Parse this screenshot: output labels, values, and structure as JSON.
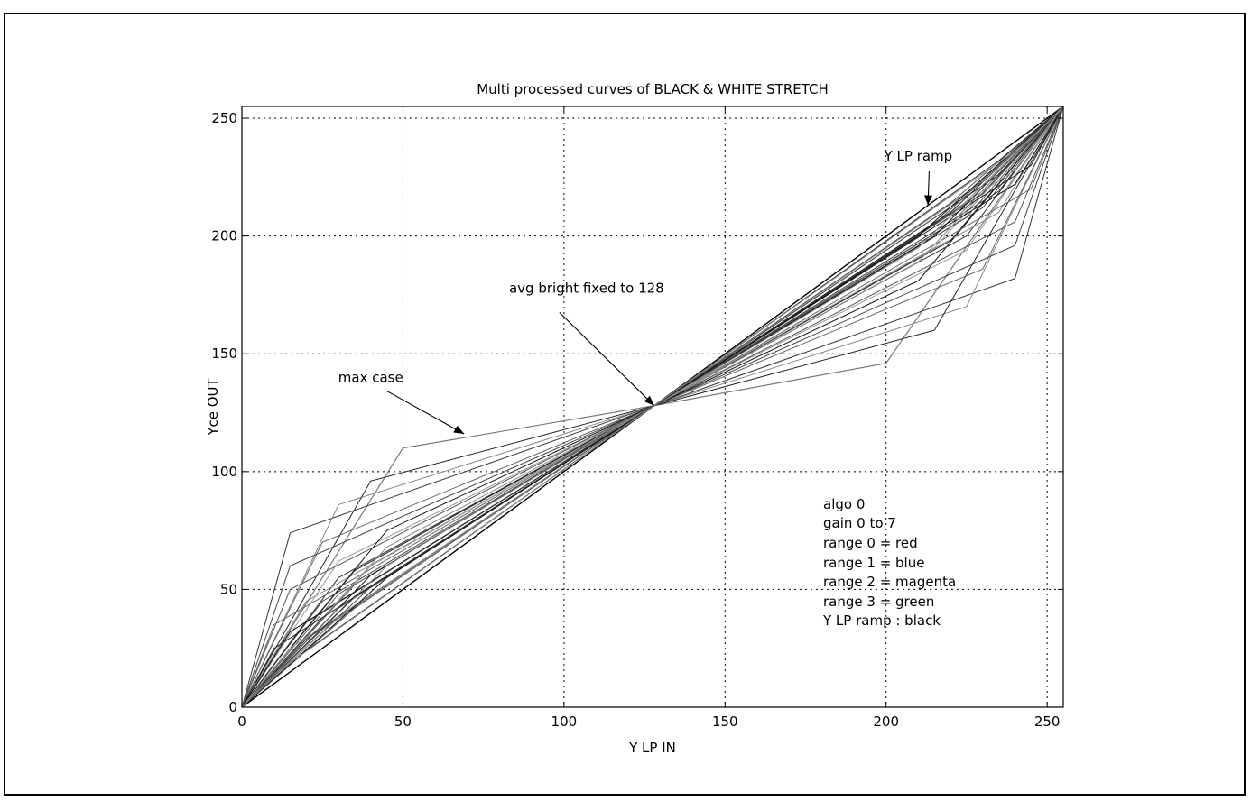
{
  "chart_data": {
    "type": "line",
    "title": "Multi processed curves of BLACK & WHITE STRETCH",
    "xlabel": "Y LP IN",
    "ylabel": "Yce OUT",
    "xlim": [
      0,
      255
    ],
    "ylim": [
      0,
      255
    ],
    "x_ticks": [
      "0",
      "50",
      "100",
      "150",
      "200",
      "250"
    ],
    "y_ticks": [
      "0",
      "50",
      "100",
      "150",
      "200",
      "250"
    ],
    "grid": true,
    "series": [
      {
        "name": "Y LP ramp",
        "x": [
          0,
          255
        ],
        "y": [
          0,
          255
        ]
      },
      {
        "name": "max case",
        "x": [
          0,
          50,
          128,
          200,
          255
        ],
        "y": [
          0,
          110,
          128,
          146,
          255
        ]
      },
      {
        "x": [
          0,
          15,
          128,
          240,
          255
        ],
        "y": [
          0,
          74,
          128,
          182,
          255
        ]
      },
      {
        "x": [
          0,
          30,
          128,
          225,
          255
        ],
        "y": [
          0,
          86,
          128,
          170,
          255
        ]
      },
      {
        "x": [
          0,
          40,
          128,
          215,
          255
        ],
        "y": [
          0,
          96,
          128,
          160,
          255
        ]
      },
      {
        "x": [
          0,
          25,
          128,
          230,
          255
        ],
        "y": [
          0,
          70,
          128,
          186,
          255
        ]
      },
      {
        "x": [
          0,
          15,
          128,
          240,
          255
        ],
        "y": [
          0,
          60,
          128,
          196,
          255
        ]
      },
      {
        "x": [
          0,
          30,
          128,
          225,
          255
        ],
        "y": [
          0,
          62,
          128,
          194,
          255
        ]
      },
      {
        "x": [
          0,
          45,
          128,
          210,
          255
        ],
        "y": [
          0,
          75,
          128,
          181,
          255
        ]
      },
      {
        "x": [
          0,
          15,
          128,
          240,
          255
        ],
        "y": [
          0,
          50,
          128,
          206,
          255
        ]
      },
      {
        "x": [
          0,
          30,
          128,
          225,
          255
        ],
        "y": [
          0,
          55,
          128,
          200,
          255
        ]
      },
      {
        "x": [
          0,
          20,
          128,
          235,
          255
        ],
        "y": [
          0,
          45,
          128,
          210,
          255
        ]
      },
      {
        "x": [
          0,
          35,
          128,
          220,
          255
        ],
        "y": [
          0,
          58,
          128,
          198,
          255
        ]
      },
      {
        "x": [
          0,
          10,
          128,
          245,
          255
        ],
        "y": [
          0,
          35,
          128,
          220,
          255
        ]
      },
      {
        "x": [
          0,
          25,
          128,
          230,
          255
        ],
        "y": [
          0,
          45,
          128,
          212,
          255
        ]
      },
      {
        "x": [
          0,
          40,
          128,
          215,
          255
        ],
        "y": [
          0,
          60,
          128,
          195,
          255
        ]
      },
      {
        "x": [
          0,
          15,
          128,
          240,
          255
        ],
        "y": [
          0,
          32,
          128,
          222,
          255
        ]
      },
      {
        "x": [
          0,
          30,
          128,
          225,
          255
        ],
        "y": [
          0,
          48,
          128,
          208,
          255
        ]
      },
      {
        "x": [
          0,
          20,
          128,
          235,
          255
        ],
        "y": [
          0,
          36,
          128,
          219,
          255
        ]
      },
      {
        "x": [
          0,
          45,
          128,
          210,
          255
        ],
        "y": [
          0,
          68,
          128,
          189,
          255
        ]
      },
      {
        "x": [
          0,
          10,
          128,
          245,
          255
        ],
        "y": [
          0,
          25,
          128,
          230,
          255
        ]
      },
      {
        "x": [
          0,
          35,
          128,
          220,
          255
        ],
        "y": [
          0,
          52,
          128,
          205,
          255
        ]
      },
      {
        "x": [
          0,
          25,
          128,
          230,
          255
        ],
        "y": [
          0,
          38,
          128,
          218,
          255
        ]
      },
      {
        "x": [
          0,
          15,
          128,
          240,
          255
        ],
        "y": [
          0,
          25,
          128,
          228,
          255
        ]
      },
      {
        "x": [
          0,
          40,
          128,
          215,
          255
        ],
        "y": [
          0,
          56,
          128,
          200,
          255
        ]
      },
      {
        "x": [
          0,
          30,
          128,
          225,
          255
        ],
        "y": [
          0,
          42,
          128,
          214,
          255
        ]
      },
      {
        "x": [
          0,
          20,
          128,
          235,
          255
        ],
        "y": [
          0,
          29,
          128,
          226,
          255
        ]
      },
      {
        "x": [
          0,
          45,
          128,
          210,
          255
        ],
        "y": [
          0,
          60,
          128,
          195,
          255
        ]
      },
      {
        "x": [
          0,
          35,
          128,
          220,
          255
        ],
        "y": [
          0,
          47,
          128,
          210,
          255
        ]
      },
      {
        "x": [
          0,
          25,
          128,
          230,
          255
        ],
        "y": [
          0,
          33,
          128,
          223,
          255
        ]
      },
      {
        "x": [
          0,
          40,
          128,
          215,
          255
        ],
        "y": [
          0,
          51,
          128,
          205,
          255
        ]
      },
      {
        "x": [
          0,
          30,
          128,
          225,
          255
        ],
        "y": [
          0,
          38,
          128,
          218,
          255
        ]
      },
      {
        "x": [
          0,
          45,
          128,
          210,
          255
        ],
        "y": [
          0,
          55,
          128,
          200,
          255
        ]
      },
      {
        "x": [
          0,
          35,
          128,
          220,
          255
        ],
        "y": [
          0,
          42,
          128,
          214,
          255
        ]
      },
      {
        "x": [
          0,
          20,
          128,
          235,
          255
        ],
        "y": [
          0,
          24,
          128,
          232,
          255
        ]
      },
      {
        "x": [
          0,
          10,
          128,
          245,
          255
        ],
        "y": [
          0,
          14,
          128,
          241,
          255
        ]
      }
    ],
    "annotations": [
      {
        "text": "Y LP ramp",
        "x": 210,
        "y": 232,
        "arrow_to": [
          213,
          213
        ]
      },
      {
        "text": "avg bright fixed to 128",
        "x": 107,
        "y": 176,
        "arrow_to": [
          128,
          128
        ]
      },
      {
        "text": "max case",
        "x": 40,
        "y": 138,
        "arrow_to": [
          69,
          116
        ]
      }
    ],
    "legend_text": [
      "algo 0",
      "gain 0 to 7",
      "range 0 = red",
      "range 1 = blue",
      "range 2 = magenta",
      "range 3 = green",
      "Y LP ramp : black"
    ],
    "legend_placement": "lower-right inside plot"
  }
}
